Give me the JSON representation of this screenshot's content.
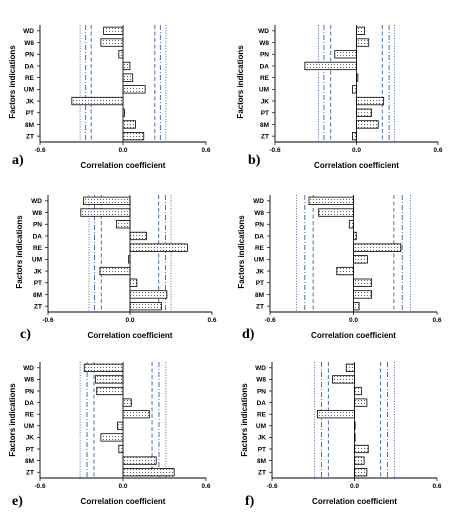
{
  "chart_data": [
    {
      "type": "bar",
      "orientation": "horizontal",
      "panel_label": "a)",
      "categories": [
        "WD",
        "W8",
        "PN",
        "DA",
        "RE",
        "UM",
        "JK",
        "PT",
        "8M",
        "ZT"
      ],
      "values": [
        -0.14,
        -0.16,
        -0.03,
        0.05,
        0.07,
        0.16,
        -0.37,
        0.01,
        0.09,
        0.15
      ],
      "xlim": [
        -0.6,
        0.6
      ],
      "x_ticks": [
        "-0.6",
        "0.0",
        "0.6"
      ],
      "xlabel": "Correlation coefficient",
      "ylabel": "Factors indications",
      "reference_lines": {
        "dotted": [
          -0.31,
          0.31
        ],
        "dash_dot": [
          -0.27,
          0.27
        ],
        "dashed": [
          -0.23,
          0.23
        ]
      }
    },
    {
      "type": "bar",
      "orientation": "horizontal",
      "panel_label": "b)",
      "categories": [
        "WD",
        "W8",
        "PN",
        "DA",
        "RE",
        "UM",
        "JK",
        "PT",
        "8M",
        "ZT"
      ],
      "values": [
        0.06,
        0.09,
        -0.16,
        -0.38,
        0.01,
        -0.03,
        0.2,
        0.11,
        0.16,
        -0.03
      ],
      "xlim": [
        -0.6,
        0.6
      ],
      "x_ticks": [
        "-0.6",
        "0.0",
        "0.6"
      ],
      "xlabel": "Correlation coefficient",
      "ylabel": "Factors indications",
      "reference_lines": {
        "dotted": [
          -0.28,
          0.28
        ],
        "dash_dot": [
          -0.24,
          0.24
        ],
        "dashed": [
          -0.19,
          0.19
        ]
      }
    },
    {
      "type": "bar",
      "orientation": "horizontal",
      "panel_label": "c)",
      "categories": [
        "WD",
        "W8",
        "PN",
        "DA",
        "RE",
        "UM",
        "JK",
        "PT",
        "8M",
        "ZT"
      ],
      "values": [
        -0.34,
        -0.36,
        -0.1,
        0.12,
        0.42,
        -0.01,
        -0.22,
        0.05,
        0.27,
        0.23
      ],
      "xlim": [
        -0.6,
        0.6
      ],
      "x_ticks": [
        "-0.6",
        "0.0",
        "0.6"
      ],
      "xlabel": "Correlation coefficient",
      "ylabel": "Factors indications",
      "reference_lines": {
        "dotted": [
          -0.3,
          0.3
        ],
        "dash_dot": [
          -0.26,
          0.26
        ],
        "dashed": [
          -0.21,
          0.21
        ]
      }
    },
    {
      "type": "bar",
      "orientation": "horizontal",
      "panel_label": "d)",
      "categories": [
        "WD",
        "W8",
        "PN",
        "DA",
        "RE",
        "UM",
        "JK",
        "PT",
        "8M",
        "ZT"
      ],
      "values": [
        -0.32,
        -0.25,
        -0.03,
        0.02,
        0.34,
        0.1,
        -0.12,
        0.13,
        0.13,
        0.04
      ],
      "xlim": [
        -0.6,
        0.6
      ],
      "x_ticks": [
        "-0.6",
        "0.0",
        "0.6"
      ],
      "xlabel": "Correlation coefficient",
      "ylabel": "Factors indications",
      "reference_lines": {
        "dotted": [
          -0.41,
          0.41
        ],
        "dash_dot": [
          -0.35,
          0.35
        ],
        "dashed": [
          -0.29,
          0.29
        ]
      }
    },
    {
      "type": "bar",
      "orientation": "horizontal",
      "panel_label": "e)",
      "categories": [
        "WD",
        "W8",
        "PN",
        "DA",
        "RE",
        "UM",
        "JK",
        "PT",
        "8M",
        "ZT"
      ],
      "values": [
        -0.28,
        -0.2,
        -0.19,
        0.06,
        0.19,
        -0.04,
        -0.16,
        -0.03,
        0.24,
        0.37
      ],
      "xlim": [
        -0.6,
        0.6
      ],
      "x_ticks": [
        "-0.6",
        "0.0",
        "0.6"
      ],
      "xlabel": "Correlation coefficient",
      "ylabel": "Factors indications",
      "reference_lines": {
        "dotted": [
          -0.31,
          0.31
        ],
        "dash_dot": [
          -0.26,
          0.26
        ],
        "dashed": [
          -0.21,
          0.21
        ]
      }
    },
    {
      "type": "bar",
      "orientation": "horizontal",
      "panel_label": "f)",
      "categories": [
        "WD",
        "W8",
        "PN",
        "DA",
        "RE",
        "UM",
        "JK",
        "PT",
        "8M",
        "ZT"
      ],
      "values": [
        -0.06,
        -0.16,
        0.05,
        0.09,
        -0.27,
        0.0,
        0.0,
        0.1,
        0.07,
        0.09
      ],
      "xlim": [
        -0.6,
        0.6
      ],
      "x_ticks": [
        "-0.6",
        "0.0",
        "0.6"
      ],
      "xlabel": "Correlation coefficient",
      "ylabel": "Factors indications",
      "reference_lines": {
        "dotted": [
          -0.29,
          0.29
        ],
        "dash_dot": [
          -0.24,
          0.24
        ],
        "dashed": [
          -0.19,
          0.19
        ]
      }
    }
  ],
  "colors": {
    "bar_stroke": "#000000",
    "bar_dots": "#3a3a3a",
    "reference_line": "#3b5fa8",
    "axis": "#000000"
  }
}
